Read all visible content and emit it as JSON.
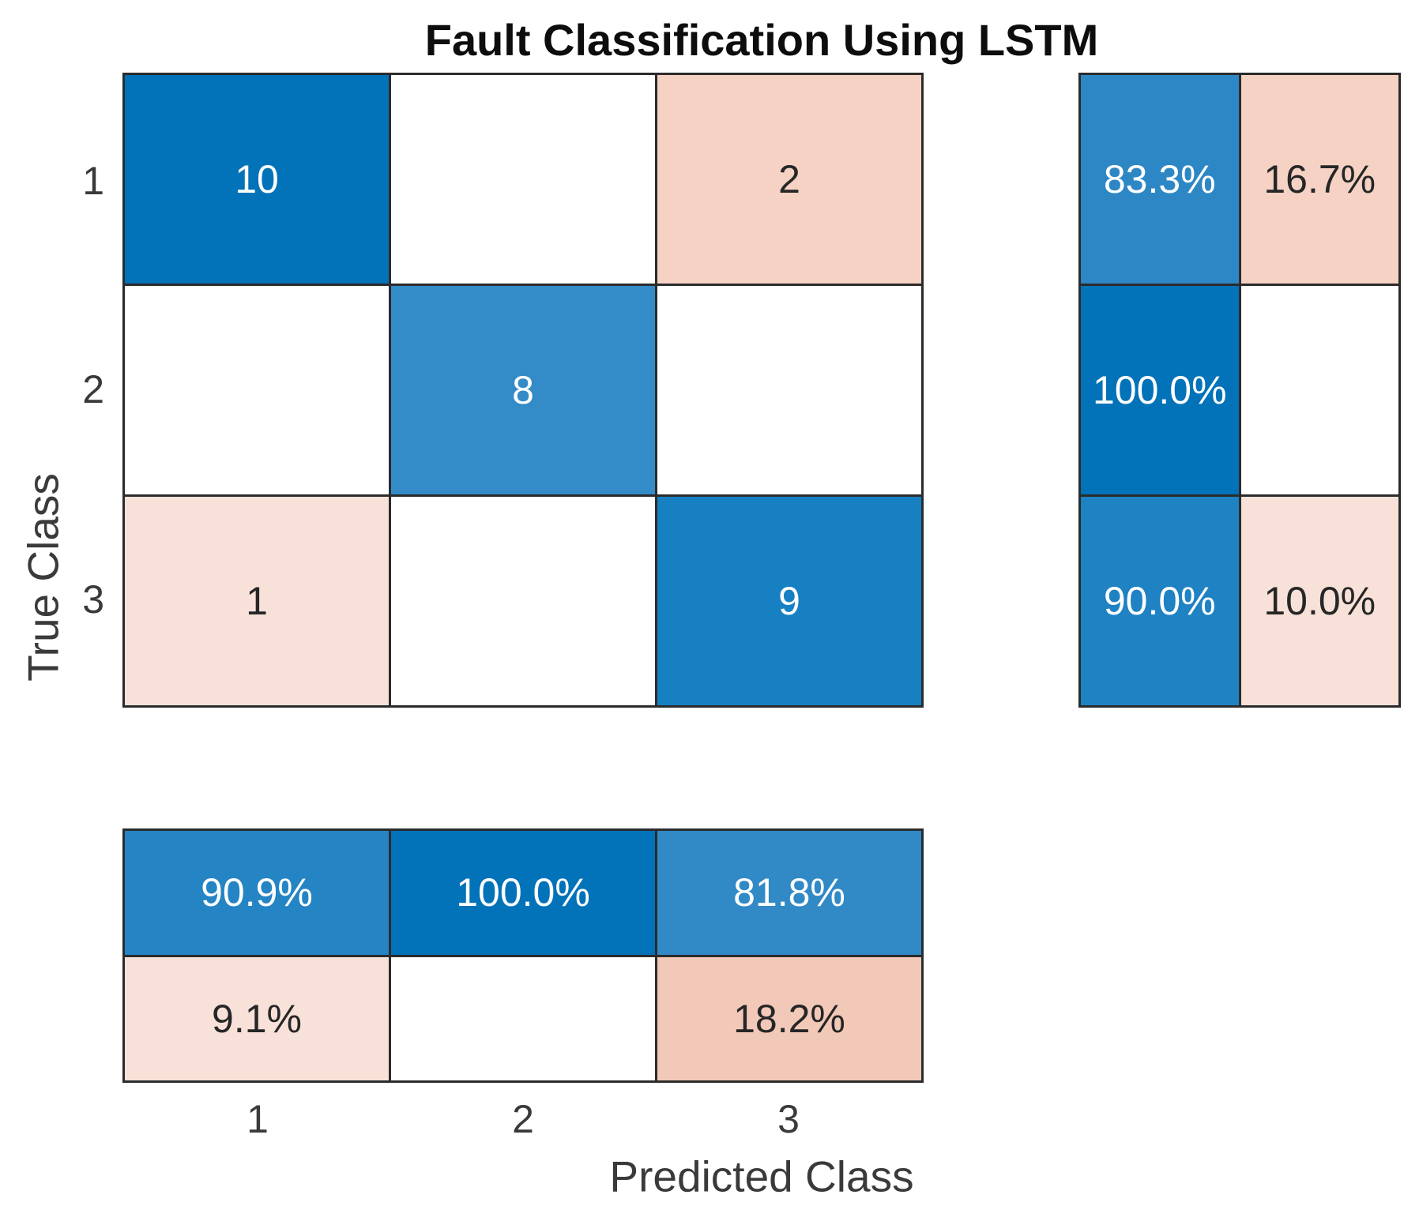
{
  "title": "Fault Classification Using LSTM",
  "axes": {
    "x_label": "Predicted Class",
    "y_label": "True Class",
    "x_ticks": [
      "1",
      "2",
      "3"
    ],
    "y_ticks": [
      "1",
      "2",
      "3"
    ]
  },
  "colors": {
    "background": "#FFFFFF",
    "grid_line": "#2B2B2B",
    "diagonal_blue_max": "#0272B9",
    "off_diagonal_pink_base": "#F5D2C4",
    "tick_text": "#3A3A3A",
    "title_text": "#0D0D0D",
    "cell_text_on_blue": "#FFFFFF",
    "cell_text_on_pink": "#262626"
  },
  "chart_data": {
    "type": "heatmap",
    "title": "Fault Classification Using LSTM",
    "xlabel": "Predicted Class",
    "ylabel": "True Class",
    "classes": [
      "1",
      "2",
      "3"
    ],
    "confusion_matrix": [
      [
        10,
        0,
        2
      ],
      [
        0,
        8,
        0
      ],
      [
        1,
        0,
        9
      ]
    ],
    "row_summary_pct": {
      "correct": [
        83.3,
        100.0,
        90.0
      ],
      "incorrect": [
        16.7,
        0,
        10.0
      ]
    },
    "column_summary_pct": {
      "correct": [
        90.9,
        100.0,
        81.8
      ],
      "incorrect": [
        9.1,
        0,
        18.2
      ]
    },
    "legend_position": "none",
    "grid": "on"
  },
  "blocks": {
    "main-matrix": {
      "cols": 3,
      "rows": 3,
      "cells": [
        {
          "v": "10",
          "bg": "#0272B9",
          "fg": "#FFFFFF"
        },
        {
          "v": "",
          "bg": "#FFFFFF",
          "fg": "#262626"
        },
        {
          "v": "2",
          "bg": "#F5D2C4",
          "fg": "#262626"
        },
        {
          "v": "",
          "bg": "#FFFFFF",
          "fg": "#262626"
        },
        {
          "v": "8",
          "bg": "#338BC7",
          "fg": "#FFFFFF"
        },
        {
          "v": "",
          "bg": "#FFFFFF",
          "fg": "#262626"
        },
        {
          "v": "1",
          "bg": "#F8E1D8",
          "fg": "#262626"
        },
        {
          "v": "",
          "bg": "#FFFFFF",
          "fg": "#262626"
        },
        {
          "v": "9",
          "bg": "#1780C2",
          "fg": "#FFFFFF"
        }
      ]
    },
    "row-summary": {
      "cols": 2,
      "rows": 3,
      "cells": [
        {
          "v": "83.3%",
          "bg": "#2E87C5",
          "fg": "#FFFFFF"
        },
        {
          "v": "16.7%",
          "bg": "#F5D2C4",
          "fg": "#262626"
        },
        {
          "v": "100.0%",
          "bg": "#0272B9",
          "fg": "#FFFFFF"
        },
        {
          "v": "",
          "bg": "#FFFFFF",
          "fg": "#262626"
        },
        {
          "v": "90.0%",
          "bg": "#1E82C3",
          "fg": "#FFFFFF"
        },
        {
          "v": "10.0%",
          "bg": "#F8E1D8",
          "fg": "#262626"
        }
      ]
    },
    "col-summary": {
      "cols": 3,
      "rows": 2,
      "cells": [
        {
          "v": "90.9%",
          "bg": "#2484C4",
          "fg": "#FFFFFF"
        },
        {
          "v": "100.0%",
          "bg": "#0272B9",
          "fg": "#FFFFFF"
        },
        {
          "v": "81.8%",
          "bg": "#3189C6",
          "fg": "#FFFFFF"
        },
        {
          "v": "9.1%",
          "bg": "#F8E1D8",
          "fg": "#262626"
        },
        {
          "v": "",
          "bg": "#FFFFFF",
          "fg": "#262626"
        },
        {
          "v": "18.2%",
          "bg": "#F2C9B8",
          "fg": "#262626"
        }
      ]
    }
  }
}
